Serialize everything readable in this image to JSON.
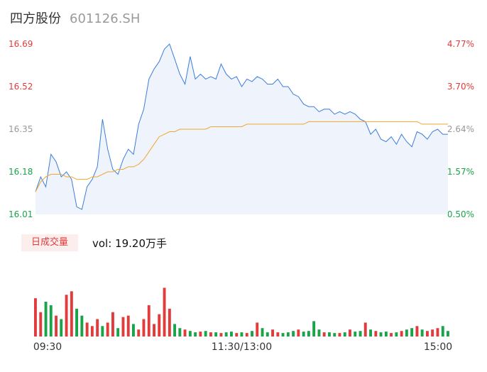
{
  "header": {
    "name": "四方股份",
    "code": "601126.SH"
  },
  "volume": {
    "badge": "日成交量",
    "label": "vol: 19.20万手"
  },
  "colors": {
    "up": "#e23b3b",
    "down": "#1aa34a",
    "flat": "#999999",
    "price": "#3b7ddd",
    "avg": "#f0a830",
    "area": "#eef3fc"
  },
  "chart_data": {
    "type": "line",
    "title": "",
    "xlabel": "",
    "ylabel": "",
    "ylim": [
      16.01,
      16.69
    ],
    "pct_range": [
      0.5,
      4.77
    ],
    "y_ticks_left": [
      "16.69",
      "16.52",
      "16.35",
      "16.18",
      "16.01"
    ],
    "y_ticks_right": [
      "4.77%",
      "3.70%",
      "2.64%",
      "1.57%",
      "0.50%"
    ],
    "x_ticks": [
      "09:30",
      "11:30/13:00",
      "15:00"
    ],
    "series": [
      {
        "key": "price",
        "x": [
          0,
          3,
          6,
          9,
          12,
          15,
          18,
          21,
          24,
          27,
          30,
          33,
          36,
          39,
          42,
          45,
          48,
          51,
          54,
          57,
          60,
          63,
          66,
          69,
          72,
          75,
          78,
          81,
          84,
          87,
          90,
          93,
          96,
          99,
          102,
          105,
          108,
          111,
          114,
          117,
          120,
          123,
          126,
          129,
          132,
          135,
          138,
          141,
          144,
          147,
          150,
          153,
          156,
          159,
          162,
          165,
          168,
          171,
          174,
          177,
          180,
          183,
          186,
          189,
          192,
          195,
          198,
          201,
          204,
          207,
          210,
          213,
          216,
          219,
          222,
          225,
          228,
          231,
          234,
          237,
          240
        ],
        "values": [
          16.1,
          16.16,
          16.12,
          16.25,
          16.22,
          16.16,
          16.18,
          16.15,
          16.04,
          16.03,
          16.12,
          16.15,
          16.2,
          16.39,
          16.27,
          16.19,
          16.17,
          16.23,
          16.27,
          16.25,
          16.37,
          16.43,
          16.55,
          16.59,
          16.62,
          16.67,
          16.69,
          16.63,
          16.57,
          16.53,
          16.64,
          16.55,
          16.57,
          16.55,
          16.56,
          16.55,
          16.61,
          16.57,
          16.55,
          16.56,
          16.52,
          16.55,
          16.54,
          16.56,
          16.55,
          16.53,
          16.53,
          16.55,
          16.52,
          16.52,
          16.49,
          16.48,
          16.45,
          16.44,
          16.44,
          16.42,
          16.43,
          16.43,
          16.41,
          16.42,
          16.41,
          16.42,
          16.41,
          16.39,
          16.38,
          16.33,
          16.35,
          16.31,
          16.3,
          16.32,
          16.29,
          16.33,
          16.3,
          16.28,
          16.34,
          16.33,
          16.31,
          16.34,
          16.35,
          16.33,
          16.33
        ]
      },
      {
        "key": "average",
        "x": [
          0,
          3,
          6,
          9,
          12,
          15,
          18,
          21,
          24,
          27,
          30,
          33,
          36,
          39,
          42,
          45,
          48,
          51,
          54,
          57,
          60,
          63,
          66,
          69,
          72,
          75,
          78,
          81,
          84,
          87,
          90,
          93,
          96,
          99,
          102,
          105,
          108,
          111,
          114,
          117,
          120,
          123,
          126,
          129,
          132,
          135,
          138,
          141,
          144,
          147,
          150,
          153,
          156,
          159,
          162,
          165,
          168,
          171,
          174,
          177,
          180,
          183,
          186,
          189,
          192,
          195,
          198,
          201,
          204,
          207,
          210,
          213,
          216,
          219,
          222,
          225,
          228,
          231,
          234,
          237,
          240
        ],
        "values": [
          16.1,
          16.14,
          16.16,
          16.17,
          16.17,
          16.17,
          16.16,
          16.16,
          16.15,
          16.15,
          16.15,
          16.16,
          16.16,
          16.17,
          16.18,
          16.18,
          16.19,
          16.19,
          16.2,
          16.2,
          16.21,
          16.23,
          16.26,
          16.29,
          16.32,
          16.33,
          16.34,
          16.34,
          16.35,
          16.35,
          16.35,
          16.35,
          16.35,
          16.35,
          16.36,
          16.36,
          16.36,
          16.36,
          16.36,
          16.36,
          16.36,
          16.37,
          16.37,
          16.37,
          16.37,
          16.37,
          16.37,
          16.37,
          16.37,
          16.37,
          16.37,
          16.37,
          16.37,
          16.38,
          16.38,
          16.38,
          16.38,
          16.38,
          16.38,
          16.38,
          16.38,
          16.38,
          16.38,
          16.38,
          16.38,
          16.38,
          16.38,
          16.38,
          16.38,
          16.38,
          16.38,
          16.38,
          16.38,
          16.38,
          16.38,
          16.37,
          16.37,
          16.37,
          16.37,
          16.37,
          16.37
        ]
      },
      {
        "key": "volume",
        "x": [
          0,
          3,
          6,
          9,
          12,
          15,
          18,
          21,
          24,
          27,
          30,
          33,
          36,
          39,
          42,
          45,
          48,
          51,
          54,
          57,
          60,
          63,
          66,
          69,
          72,
          75,
          78,
          81,
          84,
          87,
          90,
          93,
          96,
          99,
          102,
          105,
          108,
          111,
          114,
          117,
          120,
          123,
          126,
          129,
          132,
          135,
          138,
          141,
          144,
          147,
          150,
          153,
          156,
          159,
          162,
          165,
          168,
          171,
          174,
          177,
          180,
          183,
          186,
          189,
          192,
          195,
          198,
          201,
          204,
          207,
          210,
          213,
          216,
          219,
          222,
          225,
          228,
          231,
          234,
          237,
          240
        ],
        "values": [
          55,
          35,
          50,
          45,
          30,
          25,
          60,
          65,
          40,
          30,
          20,
          15,
          25,
          15,
          20,
          35,
          12,
          28,
          30,
          18,
          10,
          25,
          45,
          18,
          32,
          70,
          40,
          18,
          12,
          10,
          8,
          6,
          7,
          8,
          6,
          6,
          5,
          6,
          7,
          5,
          6,
          5,
          8,
          20,
          12,
          6,
          10,
          6,
          5,
          6,
          8,
          10,
          7,
          8,
          22,
          10,
          6,
          6,
          5,
          5,
          6,
          10,
          7,
          8,
          20,
          10,
          8,
          6,
          7,
          5,
          6,
          8,
          10,
          12,
          15,
          10,
          8,
          10,
          12,
          15,
          8
        ],
        "directions": [
          "u",
          "u",
          "d",
          "d",
          "u",
          "d",
          "u",
          "u",
          "d",
          "d",
          "u",
          "u",
          "u",
          "d",
          "u",
          "u",
          "d",
          "u",
          "u",
          "d",
          "u",
          "u",
          "u",
          "u",
          "u",
          "u",
          "u",
          "d",
          "d",
          "u",
          "d",
          "d",
          "u",
          "d",
          "u",
          "d",
          "u",
          "d",
          "d",
          "u",
          "d",
          "u",
          "d",
          "u",
          "d",
          "d",
          "u",
          "u",
          "d",
          "d",
          "d",
          "u",
          "d",
          "d",
          "d",
          "d",
          "u",
          "d",
          "d",
          "u",
          "d",
          "u",
          "d",
          "d",
          "u",
          "d",
          "u",
          "d",
          "d",
          "u",
          "d",
          "u",
          "d",
          "d",
          "u",
          "d",
          "u",
          "u",
          "u",
          "d",
          "d"
        ]
      }
    ]
  }
}
